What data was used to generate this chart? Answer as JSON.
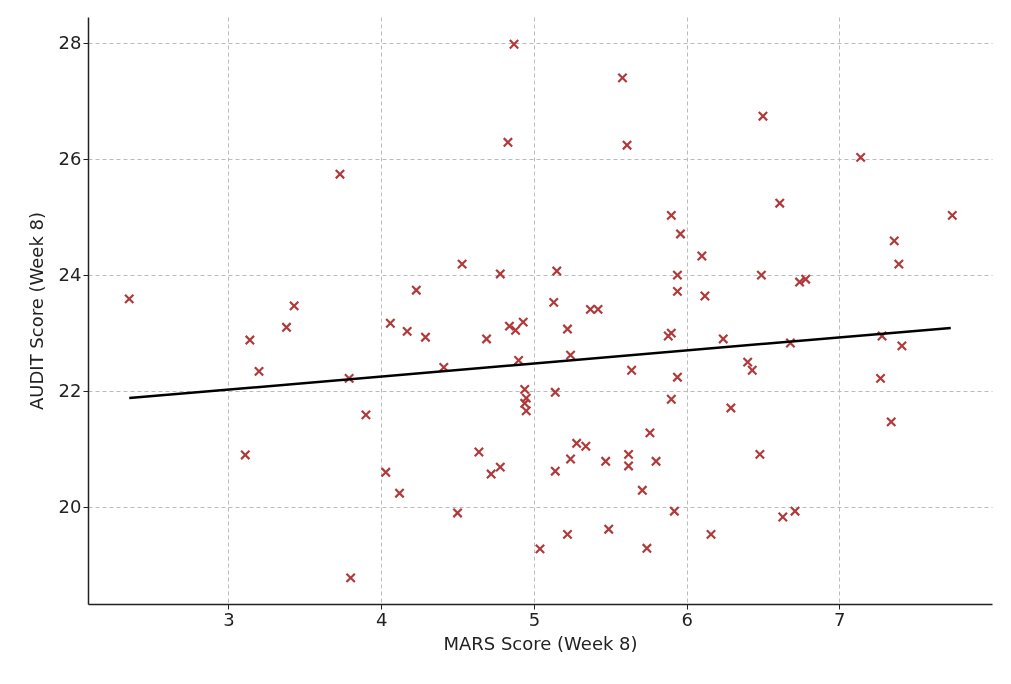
{
  "chart_data": {
    "type": "scatter",
    "xlabel": "MARS Score (Week 8)",
    "ylabel": "AUDIT Score (Week 8)",
    "xlim": [
      2.08,
      8.0
    ],
    "ylim": [
      18.33,
      28.45
    ],
    "xticks": [
      3,
      4,
      5,
      6,
      7
    ],
    "yticks": [
      20,
      22,
      24,
      26,
      28
    ],
    "grid": true,
    "series": [
      {
        "color": "#b03a3a",
        "marker": "cross",
        "x": [
          2.35,
          3.11,
          3.14,
          3.2,
          3.38,
          3.43,
          3.73,
          3.79,
          3.8,
          3.9,
          4.03,
          4.06,
          4.12,
          4.17,
          4.23,
          4.29,
          4.41,
          4.5,
          4.53,
          4.64,
          4.69,
          4.72,
          4.78,
          4.78,
          4.83,
          4.87,
          4.84,
          4.88,
          4.93,
          4.9,
          4.94,
          4.95,
          4.94,
          4.95,
          5.04,
          5.14,
          5.13,
          5.14,
          5.15,
          5.22,
          5.24,
          5.28,
          5.34,
          5.24,
          5.22,
          5.37,
          5.42,
          5.47,
          5.49,
          5.58,
          5.61,
          5.62,
          5.62,
          5.64,
          5.71,
          5.74,
          5.76,
          5.8,
          5.88,
          5.9,
          5.9,
          5.96,
          5.94,
          5.94,
          5.94,
          5.9,
          5.92,
          6.1,
          6.12,
          6.24,
          6.29,
          6.16,
          6.4,
          6.43,
          6.48,
          6.5,
          6.49,
          6.61,
          6.68,
          6.63,
          6.71,
          6.74,
          6.78,
          7.14,
          7.28,
          7.41,
          7.27,
          7.34,
          7.36,
          7.39,
          7.74
        ],
        "values": [
          23.59,
          20.9,
          22.88,
          22.34,
          23.1,
          23.47,
          25.74,
          22.22,
          18.78,
          21.59,
          20.6,
          23.17,
          20.24,
          23.03,
          23.74,
          22.93,
          22.41,
          19.9,
          24.19,
          20.95,
          22.9,
          20.57,
          20.69,
          24.02,
          26.29,
          27.98,
          23.12,
          23.05,
          23.19,
          22.53,
          22.03,
          21.88,
          21.79,
          21.66,
          19.28,
          21.98,
          23.53,
          20.62,
          24.07,
          23.07,
          22.62,
          21.1,
          21.05,
          20.83,
          19.53,
          23.41,
          23.41,
          20.79,
          19.62,
          27.4,
          26.24,
          20.91,
          20.71,
          22.36,
          20.29,
          19.29,
          21.28,
          20.79,
          22.95,
          23.0,
          25.03,
          24.71,
          24.0,
          23.72,
          22.24,
          21.86,
          19.93,
          24.33,
          23.64,
          22.9,
          21.71,
          19.53,
          22.5,
          22.36,
          20.91,
          26.74,
          24.0,
          25.24,
          22.83,
          19.83,
          19.93,
          23.88,
          23.93,
          26.03,
          22.95,
          22.78,
          22.22,
          21.47,
          24.59,
          24.19,
          25.03
        ]
      },
      {
        "type": "line",
        "color": "#000000",
        "line_style": "solid",
        "marker": "none",
        "x": [
          2.35,
          7.73
        ],
        "values": [
          21.88,
          23.09
        ]
      }
    ]
  }
}
